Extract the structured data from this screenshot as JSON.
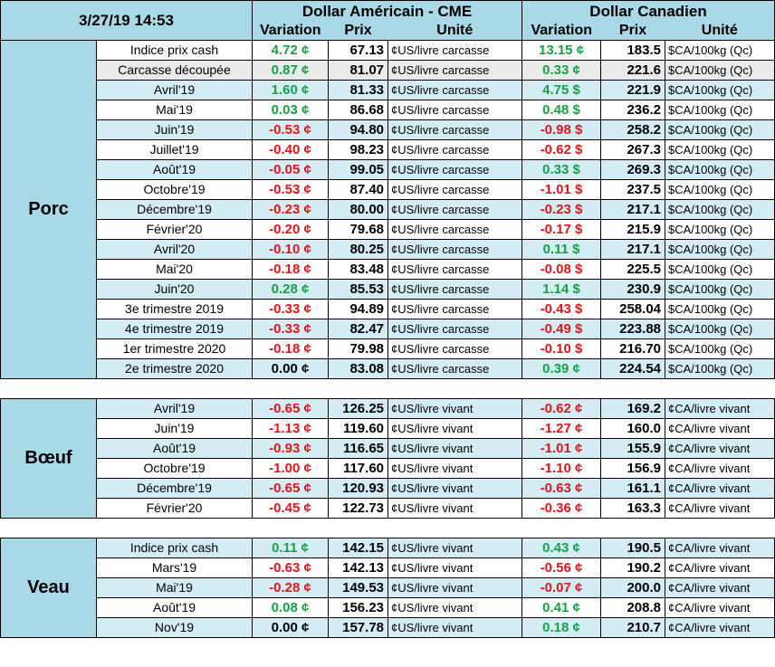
{
  "timestamp": "3/27/19 14:53",
  "headers": {
    "usd_group": "Dollar Américain - CME",
    "cad_group": "Dollar Canadien",
    "variation": "Variation",
    "prix": "Prix",
    "unite": "Unité"
  },
  "colors": {
    "positive": "#16a146",
    "negative": "#e3141b",
    "header_bg": "#a9d8e6"
  },
  "sections": [
    {
      "name": "Porc",
      "rows": [
        {
          "label": "Indice prix cash",
          "usd_var": "4.72 ¢",
          "usd_price": "67.13",
          "usd_unit": "¢US/livre carcasse",
          "cad_var": "13.15 ¢",
          "cad_price": "183.5",
          "cad_unit": "$CA/100kg (Qc)",
          "shade": "white",
          "usd_sign": "pos",
          "cad_sign": "pos"
        },
        {
          "label": "Carcasse découpée",
          "usd_var": "0.87 ¢",
          "usd_price": "81.07",
          "usd_unit": "¢US/livre carcasse",
          "cad_var": "0.33 ¢",
          "cad_price": "221.6",
          "cad_unit": "$CA/100kg (Qc)",
          "shade": "gray",
          "usd_sign": "pos",
          "cad_sign": "pos"
        },
        {
          "label": "Avril'19",
          "usd_var": "1.60 ¢",
          "usd_price": "81.33",
          "usd_unit": "¢US/livre carcasse",
          "cad_var": "4.75 $",
          "cad_price": "221.9",
          "cad_unit": "$CA/100kg (Qc)",
          "shade": "alt",
          "usd_sign": "pos",
          "cad_sign": "pos"
        },
        {
          "label": "Mai'19",
          "usd_var": "0.03 ¢",
          "usd_price": "86.68",
          "usd_unit": "¢US/livre carcasse",
          "cad_var": "0.48 $",
          "cad_price": "236.2",
          "cad_unit": "$CA/100kg (Qc)",
          "shade": "white",
          "usd_sign": "pos",
          "cad_sign": "pos"
        },
        {
          "label": "Juin'19",
          "usd_var": "-0.53 ¢",
          "usd_price": "94.80",
          "usd_unit": "¢US/livre carcasse",
          "cad_var": "-0.98 $",
          "cad_price": "258.2",
          "cad_unit": "$CA/100kg (Qc)",
          "shade": "alt",
          "usd_sign": "neg",
          "cad_sign": "neg"
        },
        {
          "label": "Juillet'19",
          "usd_var": "-0.40 ¢",
          "usd_price": "98.23",
          "usd_unit": "¢US/livre carcasse",
          "cad_var": "-0.62 $",
          "cad_price": "267.3",
          "cad_unit": "$CA/100kg (Qc)",
          "shade": "white",
          "usd_sign": "neg",
          "cad_sign": "neg"
        },
        {
          "label": "Août'19",
          "usd_var": "-0.05 ¢",
          "usd_price": "99.05",
          "usd_unit": "¢US/livre carcasse",
          "cad_var": "0.33 $",
          "cad_price": "269.3",
          "cad_unit": "$CA/100kg (Qc)",
          "shade": "alt",
          "usd_sign": "neg",
          "cad_sign": "pos"
        },
        {
          "label": "Octobre'19",
          "usd_var": "-0.53 ¢",
          "usd_price": "87.40",
          "usd_unit": "¢US/livre carcasse",
          "cad_var": "-1.01 $",
          "cad_price": "237.5",
          "cad_unit": "$CA/100kg (Qc)",
          "shade": "white",
          "usd_sign": "neg",
          "cad_sign": "neg"
        },
        {
          "label": "Décembre'19",
          "usd_var": "-0.23 ¢",
          "usd_price": "80.00",
          "usd_unit": "¢US/livre carcasse",
          "cad_var": "-0.23 $",
          "cad_price": "217.1",
          "cad_unit": "$CA/100kg (Qc)",
          "shade": "alt",
          "usd_sign": "neg",
          "cad_sign": "neg"
        },
        {
          "label": "Février'20",
          "usd_var": "-0.20 ¢",
          "usd_price": "79.68",
          "usd_unit": "¢US/livre carcasse",
          "cad_var": "-0.17 $",
          "cad_price": "215.9",
          "cad_unit": "$CA/100kg (Qc)",
          "shade": "white",
          "usd_sign": "neg",
          "cad_sign": "neg"
        },
        {
          "label": "Avril'20",
          "usd_var": "-0.10 ¢",
          "usd_price": "80.25",
          "usd_unit": "¢US/livre carcasse",
          "cad_var": "0.11 $",
          "cad_price": "217.1",
          "cad_unit": "$CA/100kg (Qc)",
          "shade": "alt",
          "usd_sign": "neg",
          "cad_sign": "pos"
        },
        {
          "label": "Mai'20",
          "usd_var": "-0.18 ¢",
          "usd_price": "83.48",
          "usd_unit": "¢US/livre carcasse",
          "cad_var": "-0.08 $",
          "cad_price": "225.5",
          "cad_unit": "$CA/100kg (Qc)",
          "shade": "white",
          "usd_sign": "neg",
          "cad_sign": "neg"
        },
        {
          "label": "Juin'20",
          "usd_var": "0.28 ¢",
          "usd_price": "85.53",
          "usd_unit": "¢US/livre carcasse",
          "cad_var": "1.14 $",
          "cad_price": "230.9",
          "cad_unit": "$CA/100kg (Qc)",
          "shade": "alt",
          "usd_sign": "pos",
          "cad_sign": "pos"
        },
        {
          "label": "3e trimestre 2019",
          "usd_var": "-0.33 ¢",
          "usd_price": "94.89",
          "usd_unit": "¢US/livre carcasse",
          "cad_var": "-0.43 $",
          "cad_price": "258.04",
          "cad_unit": "$CA/100kg (Qc)",
          "shade": "white",
          "usd_sign": "neg",
          "cad_sign": "neg"
        },
        {
          "label": "4e trimestre 2019",
          "usd_var": "-0.33 ¢",
          "usd_price": "82.47",
          "usd_unit": "¢US/livre carcasse",
          "cad_var": "-0.49 $",
          "cad_price": "223.88",
          "cad_unit": "$CA/100kg (Qc)",
          "shade": "alt",
          "usd_sign": "neg",
          "cad_sign": "neg"
        },
        {
          "label": "1er trimestre 2020",
          "usd_var": "-0.18 ¢",
          "usd_price": "79.98",
          "usd_unit": "¢US/livre carcasse",
          "cad_var": "-0.10 $",
          "cad_price": "216.70",
          "cad_unit": "$CA/100kg (Qc)",
          "shade": "white",
          "usd_sign": "neg",
          "cad_sign": "neg"
        },
        {
          "label": "2e trimestre 2020",
          "usd_var": "0.00 ¢",
          "usd_price": "83.08",
          "usd_unit": "¢US/livre carcasse",
          "cad_var": "0.39 ¢",
          "cad_price": "224.54",
          "cad_unit": "$CA/100kg (Qc)",
          "shade": "alt",
          "usd_sign": "zero",
          "cad_sign": "pos"
        }
      ]
    },
    {
      "name": "Bœuf",
      "rows": [
        {
          "label": "Avril'19",
          "usd_var": "-0.65 ¢",
          "usd_price": "126.25",
          "usd_unit": "¢US/livre vivant",
          "cad_var": "-0.62 ¢",
          "cad_price": "169.2",
          "cad_unit": "¢CA/livre vivant",
          "shade": "alt",
          "usd_sign": "neg",
          "cad_sign": "neg"
        },
        {
          "label": "Juin'19",
          "usd_var": "-1.13 ¢",
          "usd_price": "119.60",
          "usd_unit": "¢US/livre vivant",
          "cad_var": "-1.27 ¢",
          "cad_price": "160.0",
          "cad_unit": "¢CA/livre vivant",
          "shade": "white",
          "usd_sign": "neg",
          "cad_sign": "neg"
        },
        {
          "label": "Août'19",
          "usd_var": "-0.93 ¢",
          "usd_price": "116.65",
          "usd_unit": "¢US/livre vivant",
          "cad_var": "-1.01 ¢",
          "cad_price": "155.9",
          "cad_unit": "¢CA/livre vivant",
          "shade": "alt",
          "usd_sign": "neg",
          "cad_sign": "neg"
        },
        {
          "label": "Octobre'19",
          "usd_var": "-1.00 ¢",
          "usd_price": "117.60",
          "usd_unit": "¢US/livre vivant",
          "cad_var": "-1.10 ¢",
          "cad_price": "156.9",
          "cad_unit": "¢CA/livre vivant",
          "shade": "white",
          "usd_sign": "neg",
          "cad_sign": "neg"
        },
        {
          "label": "Décembre'19",
          "usd_var": "-0.65 ¢",
          "usd_price": "120.93",
          "usd_unit": "¢US/livre vivant",
          "cad_var": "-0.63 ¢",
          "cad_price": "161.1",
          "cad_unit": "¢CA/livre vivant",
          "shade": "alt",
          "usd_sign": "neg",
          "cad_sign": "neg"
        },
        {
          "label": "Février'20",
          "usd_var": "-0.45 ¢",
          "usd_price": "122.73",
          "usd_unit": "¢US/livre vivant",
          "cad_var": "-0.36 ¢",
          "cad_price": "163.3",
          "cad_unit": "¢CA/livre vivant",
          "shade": "white",
          "usd_sign": "neg",
          "cad_sign": "neg"
        }
      ]
    },
    {
      "name": "Veau",
      "rows": [
        {
          "label": "Indice prix cash",
          "usd_var": "0.11 ¢",
          "usd_price": "142.15",
          "usd_unit": "¢US/livre vivant",
          "cad_var": "0.43 ¢",
          "cad_price": "190.5",
          "cad_unit": "¢CA/livre vivant",
          "shade": "alt",
          "usd_sign": "pos",
          "cad_sign": "pos"
        },
        {
          "label": "Mars'19",
          "usd_var": "-0.63 ¢",
          "usd_price": "142.13",
          "usd_unit": "¢US/livre vivant",
          "cad_var": "-0.56 ¢",
          "cad_price": "190.2",
          "cad_unit": "¢CA/livre vivant",
          "shade": "white",
          "usd_sign": "neg",
          "cad_sign": "neg"
        },
        {
          "label": "Mai'19",
          "usd_var": "-0.28 ¢",
          "usd_price": "149.53",
          "usd_unit": "¢US/livre vivant",
          "cad_var": "-0.07 ¢",
          "cad_price": "200.0",
          "cad_unit": "¢CA/livre vivant",
          "shade": "alt",
          "usd_sign": "neg",
          "cad_sign": "neg"
        },
        {
          "label": "Août'19",
          "usd_var": "0.08 ¢",
          "usd_price": "156.23",
          "usd_unit": "¢US/livre vivant",
          "cad_var": "0.41 ¢",
          "cad_price": "208.8",
          "cad_unit": "¢CA/livre vivant",
          "shade": "white",
          "usd_sign": "pos",
          "cad_sign": "pos"
        },
        {
          "label": "Nov'19",
          "usd_var": "0.00 ¢",
          "usd_price": "157.78",
          "usd_unit": "¢US/livre vivant",
          "cad_var": "0.18 ¢",
          "cad_price": "210.7",
          "cad_unit": "¢CA/livre vivant",
          "shade": "alt",
          "usd_sign": "zero",
          "cad_sign": "pos"
        }
      ]
    }
  ]
}
